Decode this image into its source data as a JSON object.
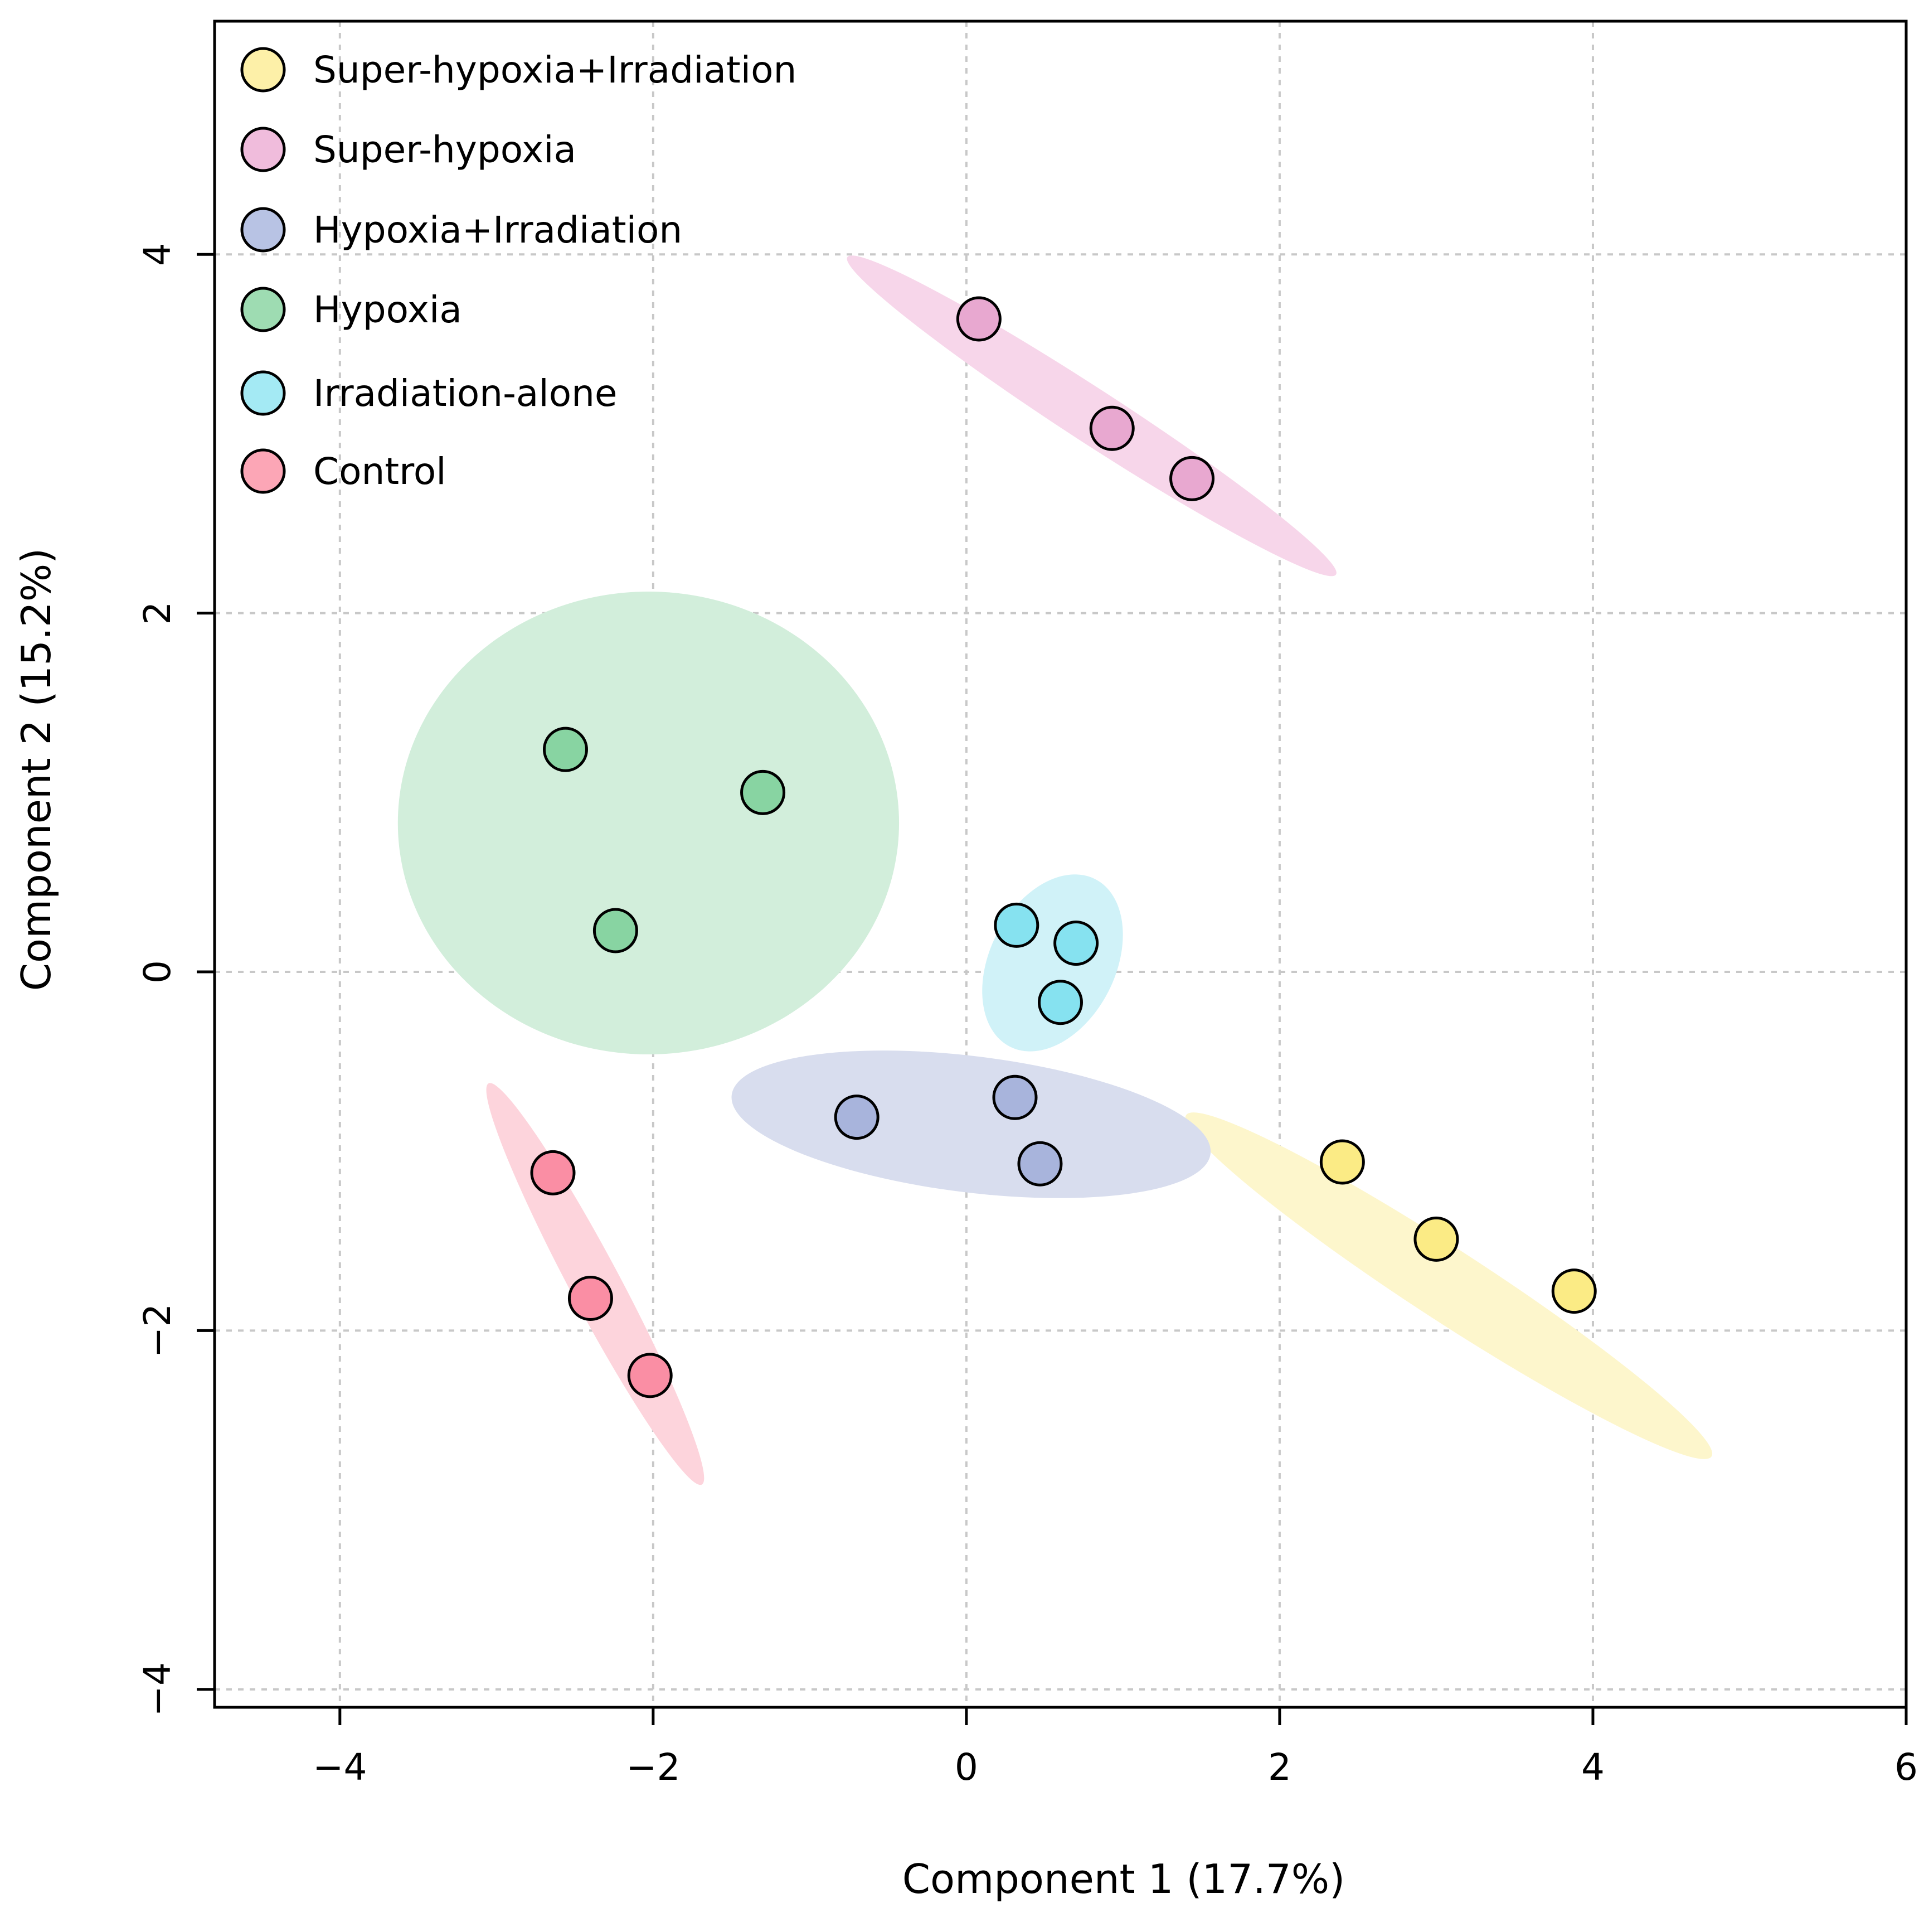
{
  "chart_data": {
    "type": "scatter",
    "title": "",
    "xlabel": "Component 1 (17.7%)",
    "ylabel": "Component 2 (15.2%)",
    "xlim": [
      -4.8,
      6.0
    ],
    "ylim": [
      -4.1,
      5.3
    ],
    "xticks": [
      -4,
      -2,
      0,
      2,
      4,
      6
    ],
    "yticks": [
      -4,
      -2,
      0,
      2,
      4
    ],
    "xtick_labels": [
      "−4",
      "−2",
      "0",
      "2",
      "4",
      "6"
    ],
    "ytick_labels": [
      "−4",
      "−2",
      "0",
      "2",
      "4"
    ],
    "grid": true,
    "legend_position": "top-left",
    "series": [
      {
        "name": "Super-hypoxia+Irradiation",
        "marker_color": "#fbeb85",
        "legend_color": "#fdf0a8",
        "ellipse_color": "#fdf6cc",
        "points": [
          [
            2.4,
            -1.06
          ],
          [
            3.0,
            -1.49
          ],
          [
            3.88,
            -1.78
          ]
        ],
        "ellipse": {
          "cx": 3.08,
          "cy": -1.75,
          "rx": 2.0,
          "ry": 0.2,
          "angle_deg": -33
        }
      },
      {
        "name": "Super-hypoxia",
        "marker_color": "#e8a8d0",
        "legend_color": "#f0bcdc",
        "ellipse_color": "#f7d6ea",
        "points": [
          [
            0.08,
            3.64
          ],
          [
            0.93,
            3.03
          ],
          [
            1.44,
            2.75
          ]
        ],
        "ellipse": {
          "cx": 0.8,
          "cy": 3.1,
          "rx": 1.86,
          "ry": 0.15,
          "angle_deg": -33
        }
      },
      {
        "name": "Hypoxia+Irradiation",
        "marker_color": "#a8b4dc",
        "legend_color": "#b8c3e4",
        "ellipse_color": "#d8ddee",
        "points": [
          [
            -0.7,
            -0.81
          ],
          [
            0.31,
            -0.7
          ],
          [
            0.47,
            -1.07
          ]
        ],
        "ellipse": {
          "cx": 0.03,
          "cy": -0.85,
          "rx": 1.54,
          "ry": 0.38,
          "angle_deg": -7
        }
      },
      {
        "name": "Hypoxia",
        "marker_color": "#88d4a2",
        "legend_color": "#9edcb2",
        "ellipse_color": "#d2eedb",
        "points": [
          [
            -2.56,
            1.24
          ],
          [
            -1.3,
            1.0
          ],
          [
            -2.24,
            0.23
          ]
        ],
        "ellipse": {
          "cx": -2.03,
          "cy": 0.83,
          "rx": 1.6,
          "ry": 1.29,
          "angle_deg": 0
        }
      },
      {
        "name": "Irradiation-alone",
        "marker_color": "#86e2f0",
        "legend_color": "#a4eaf4",
        "ellipse_color": "#d0f2f8",
        "points": [
          [
            0.32,
            0.26
          ],
          [
            0.7,
            0.16
          ],
          [
            0.6,
            -0.17
          ]
        ],
        "ellipse": {
          "cx": 0.55,
          "cy": 0.05,
          "rx": 0.6,
          "ry": 0.35,
          "angle_deg": 63
        }
      },
      {
        "name": "Control",
        "marker_color": "#fa8ea4",
        "legend_color": "#fca6b6",
        "ellipse_color": "#fdd4dc",
        "points": [
          [
            -2.64,
            -1.12
          ],
          [
            -2.4,
            -1.82
          ],
          [
            -2.02,
            -2.25
          ]
        ],
        "ellipse": {
          "cx": -2.37,
          "cy": -1.74,
          "rx": 1.45,
          "ry": 0.14,
          "angle_deg": -62
        }
      }
    ]
  }
}
